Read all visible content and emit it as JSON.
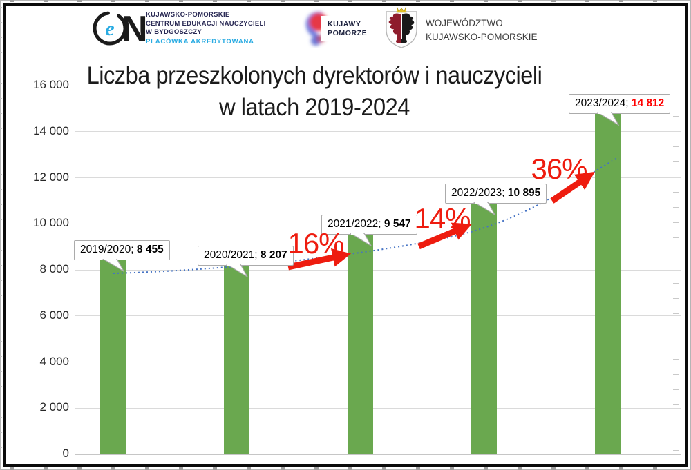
{
  "page": {
    "background": "#FFFFFF",
    "frame_color": "#000000"
  },
  "header": {
    "cen": {
      "monogram": "CeN",
      "name_line1": "KUJAWSKO-POMORSKIE",
      "name_line2": "CENTRUM EDUKACJI NAUCZYCIELI",
      "name_line3": "W BYDGOSZCZY",
      "accreditation": "PLACÓWKA AKREDYTOWANA",
      "name_color": "#2A2A55",
      "accreditation_color": "#29ABE2"
    },
    "kujawy": {
      "line1": "KUJAWY",
      "line2": "POMORZE"
    },
    "voivodeship": {
      "line1": "WOJEWÓDZTWO",
      "line2": "KUJAWSKO-POMORSKIE"
    }
  },
  "chart_data": {
    "type": "bar",
    "title_line1": "Liczba przeszkolonych dyrektorów i nauczycieli",
    "title_line2": "w latach 2019-2024",
    "xlabel": "",
    "ylabel": "",
    "legend": "none",
    "grid": true,
    "ylim": [
      0,
      16000
    ],
    "categories": [
      "2019/2020",
      "2020/2021",
      "2021/2022",
      "2022/2023",
      "2023/2024"
    ],
    "values": [
      8455,
      8207,
      9547,
      10895,
      14812
    ],
    "value_labels": [
      "8 455",
      "8 207",
      "9 547",
      "10 895",
      "14 812"
    ],
    "label_separator": "; ",
    "growth_labels": [
      "16%",
      "14%",
      "36%"
    ],
    "y_ticks": [
      {
        "v": 16000,
        "label": "16 000"
      },
      {
        "v": 14000,
        "label": "14 000"
      },
      {
        "v": 12000,
        "label": "12 000"
      },
      {
        "v": 10000,
        "label": "10 000"
      },
      {
        "v": 8000,
        "label": "8 000"
      },
      {
        "v": 6000,
        "label": "6 000"
      },
      {
        "v": 4000,
        "label": "4 000"
      },
      {
        "v": 2000,
        "label": "2 000"
      },
      {
        "v": 0,
        "label": "0"
      }
    ],
    "bar_color": "#6AA84F",
    "trendline_color": "#4472C4",
    "trendline_style": "dotted",
    "annotation_color": "#EE1C0F",
    "last_value_highlight_color": "#FF0000"
  }
}
